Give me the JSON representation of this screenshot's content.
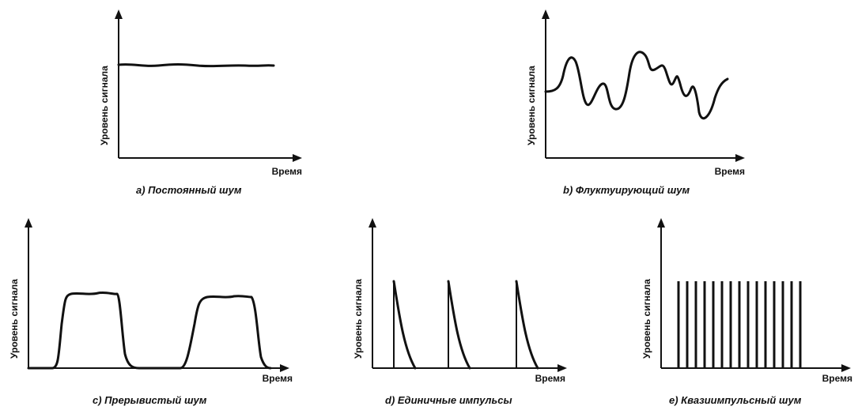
{
  "axis_labels": {
    "y": "Уровень сигнала",
    "x": "Время"
  },
  "panels": [
    {
      "id": "a",
      "caption": "a) Постоянный шум"
    },
    {
      "id": "b",
      "caption": "b) Флуктуирующий шум"
    },
    {
      "id": "c",
      "caption": "c) Прерывистый шум"
    },
    {
      "id": "d",
      "caption": "d) Единичные импульсы"
    },
    {
      "id": "e",
      "caption": "e) Квазиимпульсный шум"
    }
  ]
}
